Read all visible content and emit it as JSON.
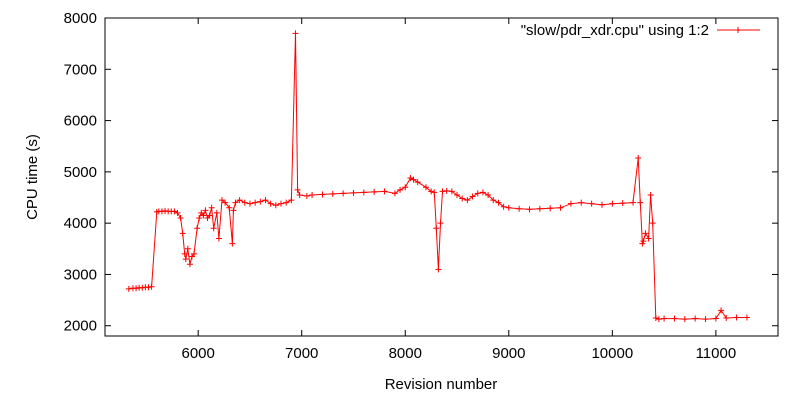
{
  "chart_data": {
    "type": "line",
    "title": "",
    "xlabel": "Revision number",
    "ylabel": "CPU time (s)",
    "xlim": [
      5100,
      11600
    ],
    "ylim": [
      1800,
      8000
    ],
    "xticks": [
      6000,
      7000,
      8000,
      9000,
      10000,
      11000
    ],
    "yticks": [
      2000,
      3000,
      4000,
      5000,
      6000,
      7000,
      8000
    ],
    "grid": false,
    "legend_position": "top-right",
    "series": [
      {
        "name": "\"slow/pdr_xdr.cpu\" using 1:2",
        "color": "#ff0000",
        "marker": "plus",
        "x": [
          5330,
          5370,
          5400,
          5430,
          5460,
          5490,
          5520,
          5550,
          5600,
          5620,
          5650,
          5680,
          5710,
          5740,
          5770,
          5800,
          5830,
          5850,
          5870,
          5880,
          5900,
          5920,
          5940,
          5960,
          5990,
          6010,
          6030,
          6050,
          6070,
          6090,
          6110,
          6130,
          6150,
          6180,
          6200,
          6230,
          6260,
          6300,
          6330,
          6340,
          6360,
          6400,
          6450,
          6500,
          6550,
          6600,
          6650,
          6700,
          6750,
          6800,
          6850,
          6900,
          6940,
          6960,
          6980,
          7050,
          7100,
          7200,
          7300,
          7400,
          7500,
          7600,
          7700,
          7800,
          7900,
          7950,
          8000,
          8050,
          8080,
          8120,
          8200,
          8250,
          8280,
          8300,
          8320,
          8340,
          8360,
          8400,
          8450,
          8500,
          8550,
          8600,
          8650,
          8700,
          8750,
          8800,
          8850,
          8900,
          8950,
          9000,
          9100,
          9200,
          9300,
          9400,
          9500,
          9600,
          9700,
          9800,
          9900,
          10000,
          10100,
          10200,
          10250,
          10270,
          10290,
          10300,
          10320,
          10350,
          10370,
          10390,
          10420,
          10450,
          10500,
          10600,
          10700,
          10800,
          10900,
          11000,
          11050,
          11100,
          11200,
          11300
        ],
        "y": [
          2720,
          2730,
          2730,
          2740,
          2740,
          2750,
          2750,
          2760,
          4220,
          4230,
          4230,
          4240,
          4230,
          4230,
          4230,
          4200,
          4100,
          3800,
          3400,
          3300,
          3500,
          3200,
          3350,
          3400,
          3900,
          4100,
          4200,
          4150,
          4250,
          4100,
          4150,
          4300,
          3900,
          4200,
          3700,
          4450,
          4400,
          4300,
          3600,
          4250,
          4400,
          4450,
          4400,
          4380,
          4400,
          4420,
          4450,
          4380,
          4350,
          4380,
          4400,
          4450,
          7700,
          4650,
          4550,
          4530,
          4550,
          4560,
          4570,
          4580,
          4590,
          4600,
          4610,
          4620,
          4580,
          4650,
          4700,
          4880,
          4850,
          4800,
          4700,
          4620,
          4600,
          3900,
          3100,
          4000,
          4620,
          4630,
          4620,
          4550,
          4480,
          4450,
          4520,
          4580,
          4600,
          4550,
          4450,
          4400,
          4320,
          4300,
          4280,
          4270,
          4280,
          4290,
          4300,
          4380,
          4400,
          4380,
          4360,
          4380,
          4390,
          4400,
          5270,
          4400,
          3600,
          3650,
          3800,
          3700,
          4550,
          4000,
          2150,
          2130,
          2140,
          2140,
          2130,
          2140,
          2130,
          2140,
          2300,
          2150,
          2160,
          2160
        ]
      }
    ]
  }
}
